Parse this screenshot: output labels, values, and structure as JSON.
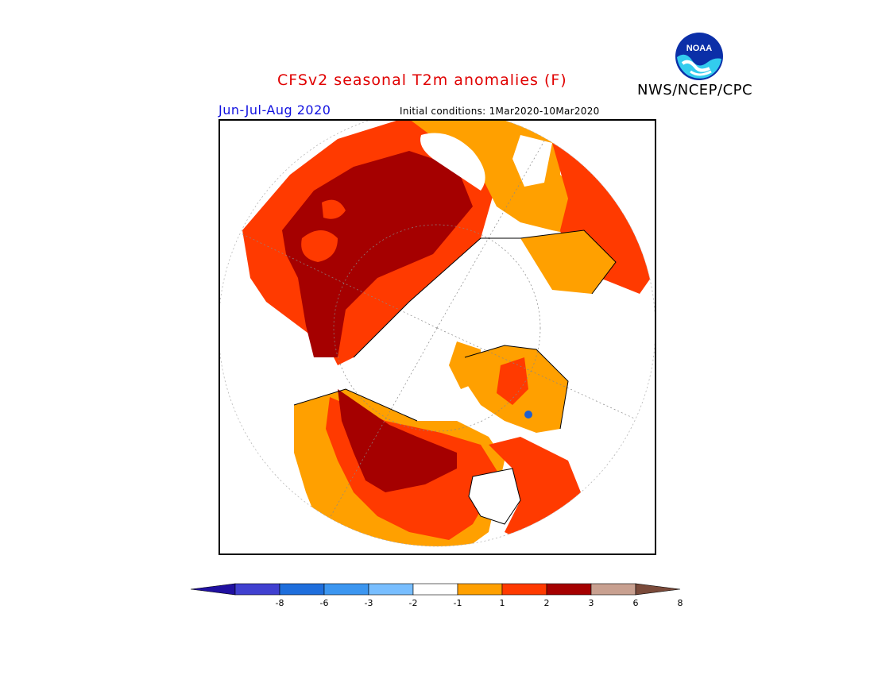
{
  "header": {
    "title": "CFSv2 seasonal T2m anomalies (F)",
    "organization": "NWS/NCEP/CPC",
    "logo_text": "NOAA",
    "season": "Jun-Jul-Aug 2020",
    "initial_conditions": "Initial conditions:  1Mar2020-10Mar2020"
  },
  "map": {
    "projection": "north-polar-stereographic",
    "colors": {
      "white": "#ffffff",
      "orange": "#ffa000",
      "red_orange": "#ff3a00",
      "dark_red": "#a50000",
      "blue": "#1f5fd0"
    }
  },
  "colorbar": {
    "ticks": [
      "-8",
      "-6",
      "-3",
      "-2",
      "-1",
      "1",
      "2",
      "3",
      "6",
      "8"
    ],
    "colors": [
      "#2010a0",
      "#4040d0",
      "#1e6edc",
      "#3c96f0",
      "#78beff",
      "#ffffff",
      "#ffa000",
      "#ff3a00",
      "#a50000",
      "#c8a090",
      "#7a4a3a"
    ]
  }
}
